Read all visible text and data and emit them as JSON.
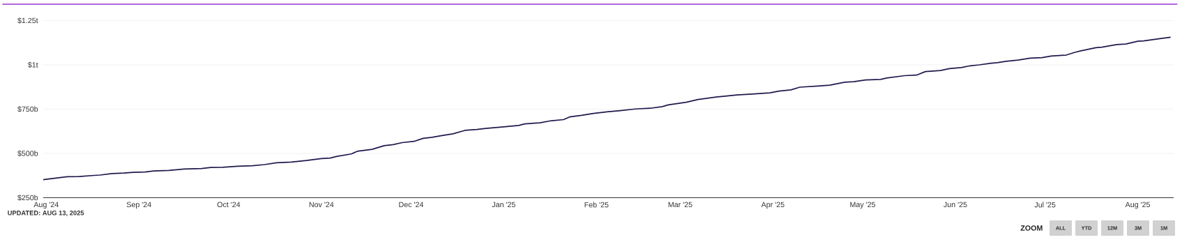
{
  "chart_data": {
    "type": "line",
    "x": [
      "2024-07-31",
      "2024-08-08",
      "2024-08-12",
      "2024-08-17",
      "2024-08-19",
      "2024-08-23",
      "2024-08-27",
      "2024-08-30",
      "2024-09-03",
      "2024-09-06",
      "2024-09-11",
      "2024-09-16",
      "2024-09-22",
      "2024-09-25",
      "2024-09-29",
      "2024-10-04",
      "2024-10-09",
      "2024-10-13",
      "2024-10-17",
      "2024-10-22",
      "2024-10-27",
      "2024-11-01",
      "2024-11-04",
      "2024-11-06",
      "2024-11-11",
      "2024-11-13",
      "2024-11-18",
      "2024-11-22",
      "2024-11-25",
      "2024-11-28",
      "2024-12-02",
      "2024-12-05",
      "2024-12-08",
      "2024-12-11",
      "2024-12-15",
      "2024-12-19",
      "2024-12-23",
      "2024-12-26",
      "2025-01-01",
      "2025-01-06",
      "2025-01-08",
      "2025-01-13",
      "2025-01-17",
      "2025-01-21",
      "2025-01-23",
      "2025-01-27",
      "2025-01-31",
      "2025-02-05",
      "2025-02-09",
      "2025-02-14",
      "2025-02-19",
      "2025-02-23",
      "2025-02-25",
      "2025-03-03",
      "2025-03-07",
      "2025-03-13",
      "2025-03-16",
      "2025-03-20",
      "2025-03-25",
      "2025-03-31",
      "2025-04-03",
      "2025-04-07",
      "2025-04-10",
      "2025-04-16",
      "2025-04-20",
      "2025-04-25",
      "2025-04-28",
      "2025-05-02",
      "2025-05-07",
      "2025-05-09",
      "2025-05-15",
      "2025-05-19",
      "2025-05-22",
      "2025-05-27",
      "2025-05-30",
      "2025-06-03",
      "2025-06-06",
      "2025-06-09",
      "2025-06-13",
      "2025-06-15",
      "2025-06-18",
      "2025-06-22",
      "2025-06-26",
      "2025-06-30",
      "2025-07-03",
      "2025-07-08",
      "2025-07-11",
      "2025-07-13",
      "2025-07-18",
      "2025-07-20",
      "2025-07-25",
      "2025-07-28",
      "2025-08-01",
      "2025-08-03",
      "2025-08-08",
      "2025-08-12"
    ],
    "values": [
      352000000000,
      369000000000,
      370000000000,
      376000000000,
      378000000000,
      386000000000,
      389000000000,
      393000000000,
      395000000000,
      401000000000,
      404000000000,
      412000000000,
      415000000000,
      421000000000,
      422000000000,
      428000000000,
      431000000000,
      437000000000,
      447000000000,
      451000000000,
      460000000000,
      471000000000,
      474000000000,
      483000000000,
      497000000000,
      512000000000,
      523000000000,
      544000000000,
      550000000000,
      561000000000,
      568000000000,
      585000000000,
      591000000000,
      600000000000,
      611000000000,
      630000000000,
      635000000000,
      641000000000,
      650000000000,
      658000000000,
      667000000000,
      673000000000,
      685000000000,
      691000000000,
      706000000000,
      715000000000,
      726000000000,
      736000000000,
      742000000000,
      751000000000,
      755000000000,
      764000000000,
      774000000000,
      789000000000,
      805000000000,
      818000000000,
      823000000000,
      830000000000,
      835000000000,
      842000000000,
      852000000000,
      859000000000,
      874000000000,
      880000000000,
      885000000000,
      902000000000,
      905000000000,
      915000000000,
      918000000000,
      926000000000,
      939000000000,
      942000000000,
      962000000000,
      968000000000,
      979000000000,
      985000000000,
      995000000000,
      1000000000000,
      1009000000000,
      1012000000000,
      1020000000000,
      1027000000000,
      1038000000000,
      1041000000000,
      1050000000000,
      1055000000000,
      1071000000000,
      1079000000000,
      1097000000000,
      1100000000000,
      1115000000000,
      1118000000000,
      1133000000000,
      1135000000000,
      1147000000000,
      1156000000000
    ],
    "color": "#1e1a4d",
    "xlim": [
      "2024-07-31",
      "2025-08-13"
    ],
    "ylim": [
      250000000000,
      1250000000000
    ],
    "xticks": [
      {
        "value": "2024-08-01",
        "label": "Aug '24"
      },
      {
        "value": "2024-09-01",
        "label": "Sep '24"
      },
      {
        "value": "2024-10-01",
        "label": "Oct '24"
      },
      {
        "value": "2024-11-01",
        "label": "Nov '24"
      },
      {
        "value": "2024-12-01",
        "label": "Dec '24"
      },
      {
        "value": "2025-01-01",
        "label": "Jan '25"
      },
      {
        "value": "2025-02-01",
        "label": "Feb '25"
      },
      {
        "value": "2025-03-01",
        "label": "Mar '25"
      },
      {
        "value": "2025-04-01",
        "label": "Apr '25"
      },
      {
        "value": "2025-05-01",
        "label": "May '25"
      },
      {
        "value": "2025-06-01",
        "label": "Jun '25"
      },
      {
        "value": "2025-07-01",
        "label": "Jul '25"
      },
      {
        "value": "2025-08-01",
        "label": "Aug '25"
      }
    ],
    "yticks": [
      {
        "value": 250000000000,
        "label": "$250b"
      },
      {
        "value": 500000000000,
        "label": "$500b"
      },
      {
        "value": 750000000000,
        "label": "$750b"
      },
      {
        "value": 1000000000000,
        "label": "$1t"
      },
      {
        "value": 1250000000000,
        "label": "$1.25t"
      }
    ],
    "grid": "y",
    "annotations": [
      "UPDATED: AUG 13, 2025",
      "ZOOM",
      "ALL",
      "YTD",
      "12M",
      "3M",
      "1M"
    ]
  }
}
